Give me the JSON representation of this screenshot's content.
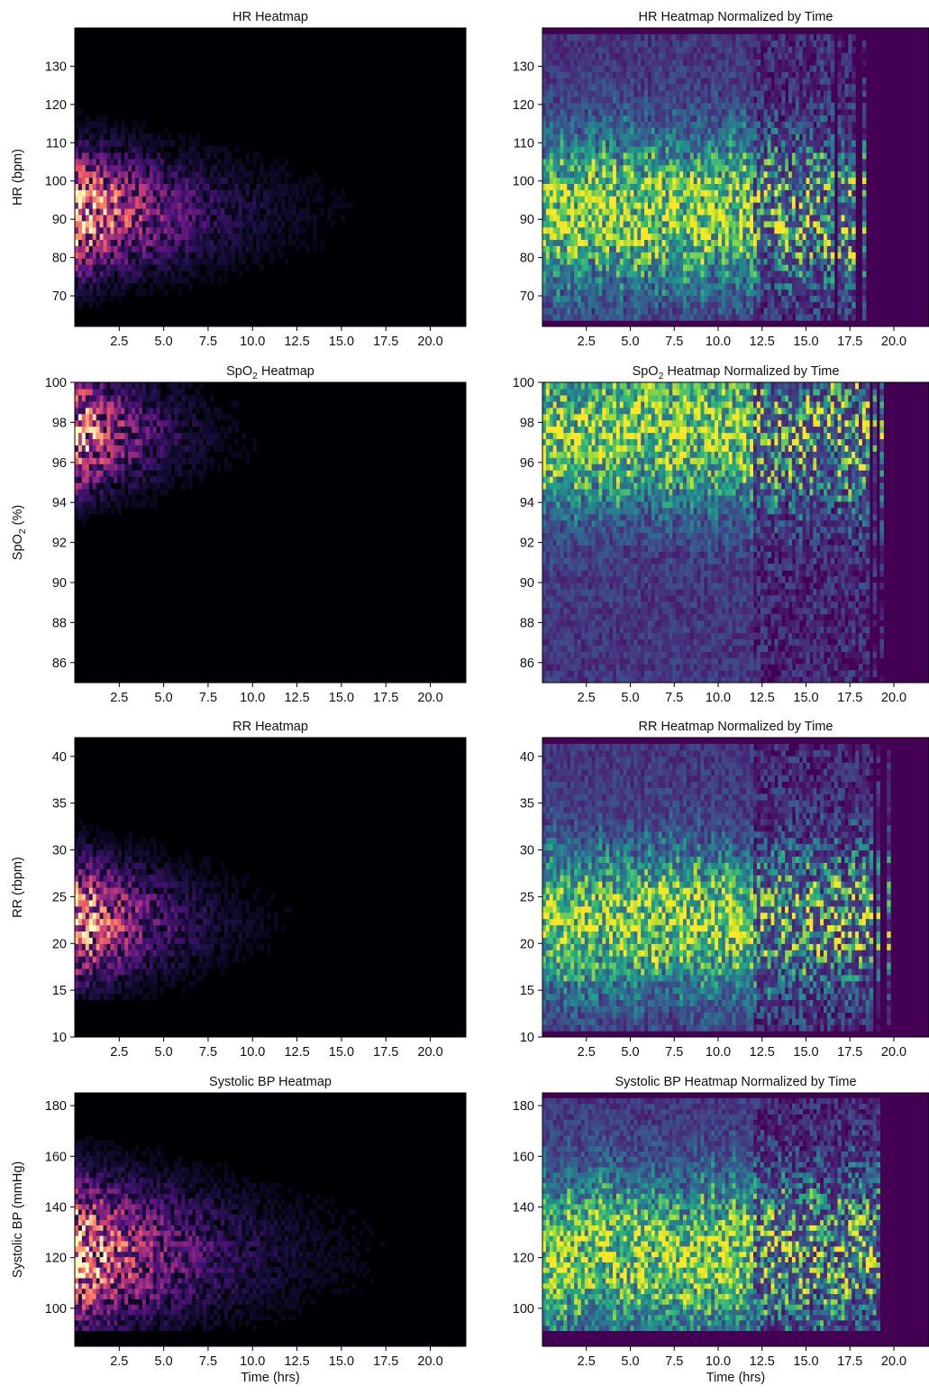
{
  "chart_data": [
    {
      "type": "heatmap",
      "title": "HR Heatmap",
      "colormap": "magma",
      "xlabel": "",
      "ylabel": "HR (bpm)",
      "xlim": [
        0,
        22
      ],
      "ylim": [
        62,
        140
      ],
      "xticks": [
        2.5,
        5.0,
        7.5,
        10.0,
        12.5,
        15.0,
        17.5,
        20.0
      ],
      "xtick_labels": [
        "2.5",
        "5.0",
        "7.5",
        "10.0",
        "12.5",
        "15.0",
        "17.5",
        "20.0"
      ],
      "yticks": [
        70,
        80,
        90,
        100,
        110,
        120,
        130
      ],
      "ytick_labels": [
        "70",
        "80",
        "90",
        "100",
        "110",
        "120",
        "130"
      ],
      "density": {
        "peak_y": 92,
        "spread_y": 10,
        "ymin_data": 63,
        "ymax_data": 126,
        "x_decay_hrs": 4.5,
        "x_extent_hrs": 16.5,
        "notes": "density highest at 0-2.5 hrs around 85-100 bpm, fading with time"
      },
      "grid": false
    },
    {
      "type": "heatmap",
      "title": "HR Heatmap Normalized by Time",
      "colormap": "viridis",
      "xlabel": "",
      "ylabel": "",
      "xlim": [
        0,
        22
      ],
      "ylim": [
        62,
        140
      ],
      "xticks": [
        2.5,
        5.0,
        7.5,
        10.0,
        12.5,
        15.0,
        17.5,
        20.0
      ],
      "xtick_labels": [
        "2.5",
        "5.0",
        "7.5",
        "10.0",
        "12.5",
        "15.0",
        "17.5",
        "20.0"
      ],
      "yticks": [
        70,
        80,
        90,
        100,
        110,
        120,
        130
      ],
      "ytick_labels": [
        "70",
        "80",
        "90",
        "100",
        "110",
        "120",
        "130"
      ],
      "density": {
        "peak_y": 92,
        "spread_y": 13,
        "ymin_data": 63,
        "ymax_data": 138,
        "x_extent_hrs": 16.5,
        "normalized_by_time": true
      },
      "grid": false
    },
    {
      "type": "heatmap",
      "title_main": "SpO",
      "title_sub": "2",
      "title_rest": " Heatmap",
      "colormap": "magma",
      "xlabel": "",
      "ylabel_main": "SpO",
      "ylabel_sub": "2",
      "ylabel_rest": " (%)",
      "xlim": [
        0,
        22
      ],
      "ylim": [
        85,
        100
      ],
      "xticks": [
        2.5,
        5.0,
        7.5,
        10.0,
        12.5,
        15.0,
        17.5,
        20.0
      ],
      "xtick_labels": [
        "2.5",
        "5.0",
        "7.5",
        "10.0",
        "12.5",
        "15.0",
        "17.5",
        "20.0"
      ],
      "yticks": [
        86,
        88,
        90,
        92,
        94,
        96,
        98,
        100
      ],
      "ytick_labels": [
        "86",
        "88",
        "90",
        "92",
        "94",
        "96",
        "98",
        "100"
      ],
      "density": {
        "peak_y": 97.5,
        "spread_y": 1.8,
        "ymin_data": 86,
        "ymax_data": 100,
        "x_decay_hrs": 3.0,
        "x_extent_hrs": 18.0,
        "notes": "density highest at 0-2.5 hrs around 96-100 %"
      },
      "grid": false
    },
    {
      "type": "heatmap",
      "title_main": "SpO",
      "title_sub": "2",
      "title_rest": " Heatmap Normalized by Time",
      "colormap": "viridis",
      "xlabel": "",
      "ylabel": "",
      "xlim": [
        0,
        22
      ],
      "ylim": [
        85,
        100
      ],
      "xticks": [
        2.5,
        5.0,
        7.5,
        10.0,
        12.5,
        15.0,
        17.5,
        20.0
      ],
      "xtick_labels": [
        "2.5",
        "5.0",
        "7.5",
        "10.0",
        "12.5",
        "15.0",
        "17.5",
        "20.0"
      ],
      "yticks": [
        86,
        88,
        90,
        92,
        94,
        96,
        98,
        100
      ],
      "ytick_labels": [
        "86",
        "88",
        "90",
        "92",
        "94",
        "96",
        "98",
        "100"
      ],
      "density": {
        "peak_y": 97.5,
        "spread_y": 2.5,
        "ymin_data": 85,
        "ymax_data": 100,
        "x_extent_hrs": 18.0,
        "normalized_by_time": true
      },
      "grid": false
    },
    {
      "type": "heatmap",
      "title": "RR Heatmap",
      "colormap": "magma",
      "xlabel": "",
      "ylabel": "RR (rbpm)",
      "xlim": [
        0,
        22
      ],
      "ylim": [
        10,
        42
      ],
      "xticks": [
        2.5,
        5.0,
        7.5,
        10.0,
        12.5,
        15.0,
        17.5,
        20.0
      ],
      "xtick_labels": [
        "2.5",
        "5.0",
        "7.5",
        "10.0",
        "12.5",
        "15.0",
        "17.5",
        "20.0"
      ],
      "yticks": [
        10,
        15,
        20,
        25,
        30,
        35,
        40
      ],
      "ytick_labels": [
        "10",
        "15",
        "20",
        "25",
        "30",
        "35",
        "40"
      ],
      "density": {
        "peak_y": 22.5,
        "spread_y": 4,
        "ymin_data": 14,
        "ymax_data": 41,
        "x_decay_hrs": 3.5,
        "x_extent_hrs": 17.0,
        "notes": "density highest at 0-2.5 hrs around 20-25 rbpm"
      },
      "grid": false
    },
    {
      "type": "heatmap",
      "title": "RR Heatmap Normalized by Time",
      "colormap": "viridis",
      "xlabel": "",
      "ylabel": "",
      "xlim": [
        0,
        22
      ],
      "ylim": [
        10,
        42
      ],
      "xticks": [
        2.5,
        5.0,
        7.5,
        10.0,
        12.5,
        15.0,
        17.5,
        20.0
      ],
      "xtick_labels": [
        "2.5",
        "5.0",
        "7.5",
        "10.0",
        "12.5",
        "15.0",
        "17.5",
        "20.0"
      ],
      "yticks": [
        10,
        15,
        20,
        25,
        30,
        35,
        40
      ],
      "ytick_labels": [
        "10",
        "15",
        "20",
        "25",
        "30",
        "35",
        "40"
      ],
      "density": {
        "peak_y": 22.5,
        "spread_y": 5,
        "ymin_data": 11,
        "ymax_data": 41,
        "x_extent_hrs": 18.5,
        "normalized_by_time": true
      },
      "grid": false
    },
    {
      "type": "heatmap",
      "title": "Systolic BP Heatmap",
      "colormap": "magma",
      "xlabel": "Time (hrs)",
      "ylabel": "Systolic BP (mmHg)",
      "xlim": [
        0,
        22
      ],
      "ylim": [
        85,
        185
      ],
      "xticks": [
        2.5,
        5.0,
        7.5,
        10.0,
        12.5,
        15.0,
        17.5,
        20.0
      ],
      "xtick_labels": [
        "2.5",
        "5.0",
        "7.5",
        "10.0",
        "12.5",
        "15.0",
        "17.5",
        "20.0"
      ],
      "yticks": [
        100,
        120,
        140,
        160,
        180
      ],
      "ytick_labels": [
        "100",
        "120",
        "140",
        "160",
        "180"
      ],
      "density": {
        "peak_y": 122,
        "spread_y": 18,
        "ymin_data": 92,
        "ymax_data": 182,
        "x_decay_hrs": 5.0,
        "x_extent_hrs": 16.0,
        "notes": "banded density between ~95-150 mmHg plus a band near 162 mmHg"
      },
      "grid": false
    },
    {
      "type": "heatmap",
      "title": "Systolic BP Heatmap Normalized by Time",
      "colormap": "viridis",
      "xlabel": "Time (hrs)",
      "ylabel": "",
      "xlim": [
        0,
        22
      ],
      "ylim": [
        85,
        185
      ],
      "xticks": [
        2.5,
        5.0,
        7.5,
        10.0,
        12.5,
        15.0,
        17.5,
        20.0
      ],
      "xtick_labels": [
        "2.5",
        "5.0",
        "7.5",
        "10.0",
        "12.5",
        "15.0",
        "17.5",
        "20.0"
      ],
      "yticks": [
        100,
        120,
        140,
        160,
        180
      ],
      "ytick_labels": [
        "100",
        "120",
        "140",
        "160",
        "180"
      ],
      "density": {
        "peak_y": 122,
        "spread_y": 20,
        "ymin_data": 92,
        "ymax_data": 182,
        "x_extent_hrs": 18.0,
        "normalized_by_time": true
      },
      "grid": false
    }
  ]
}
